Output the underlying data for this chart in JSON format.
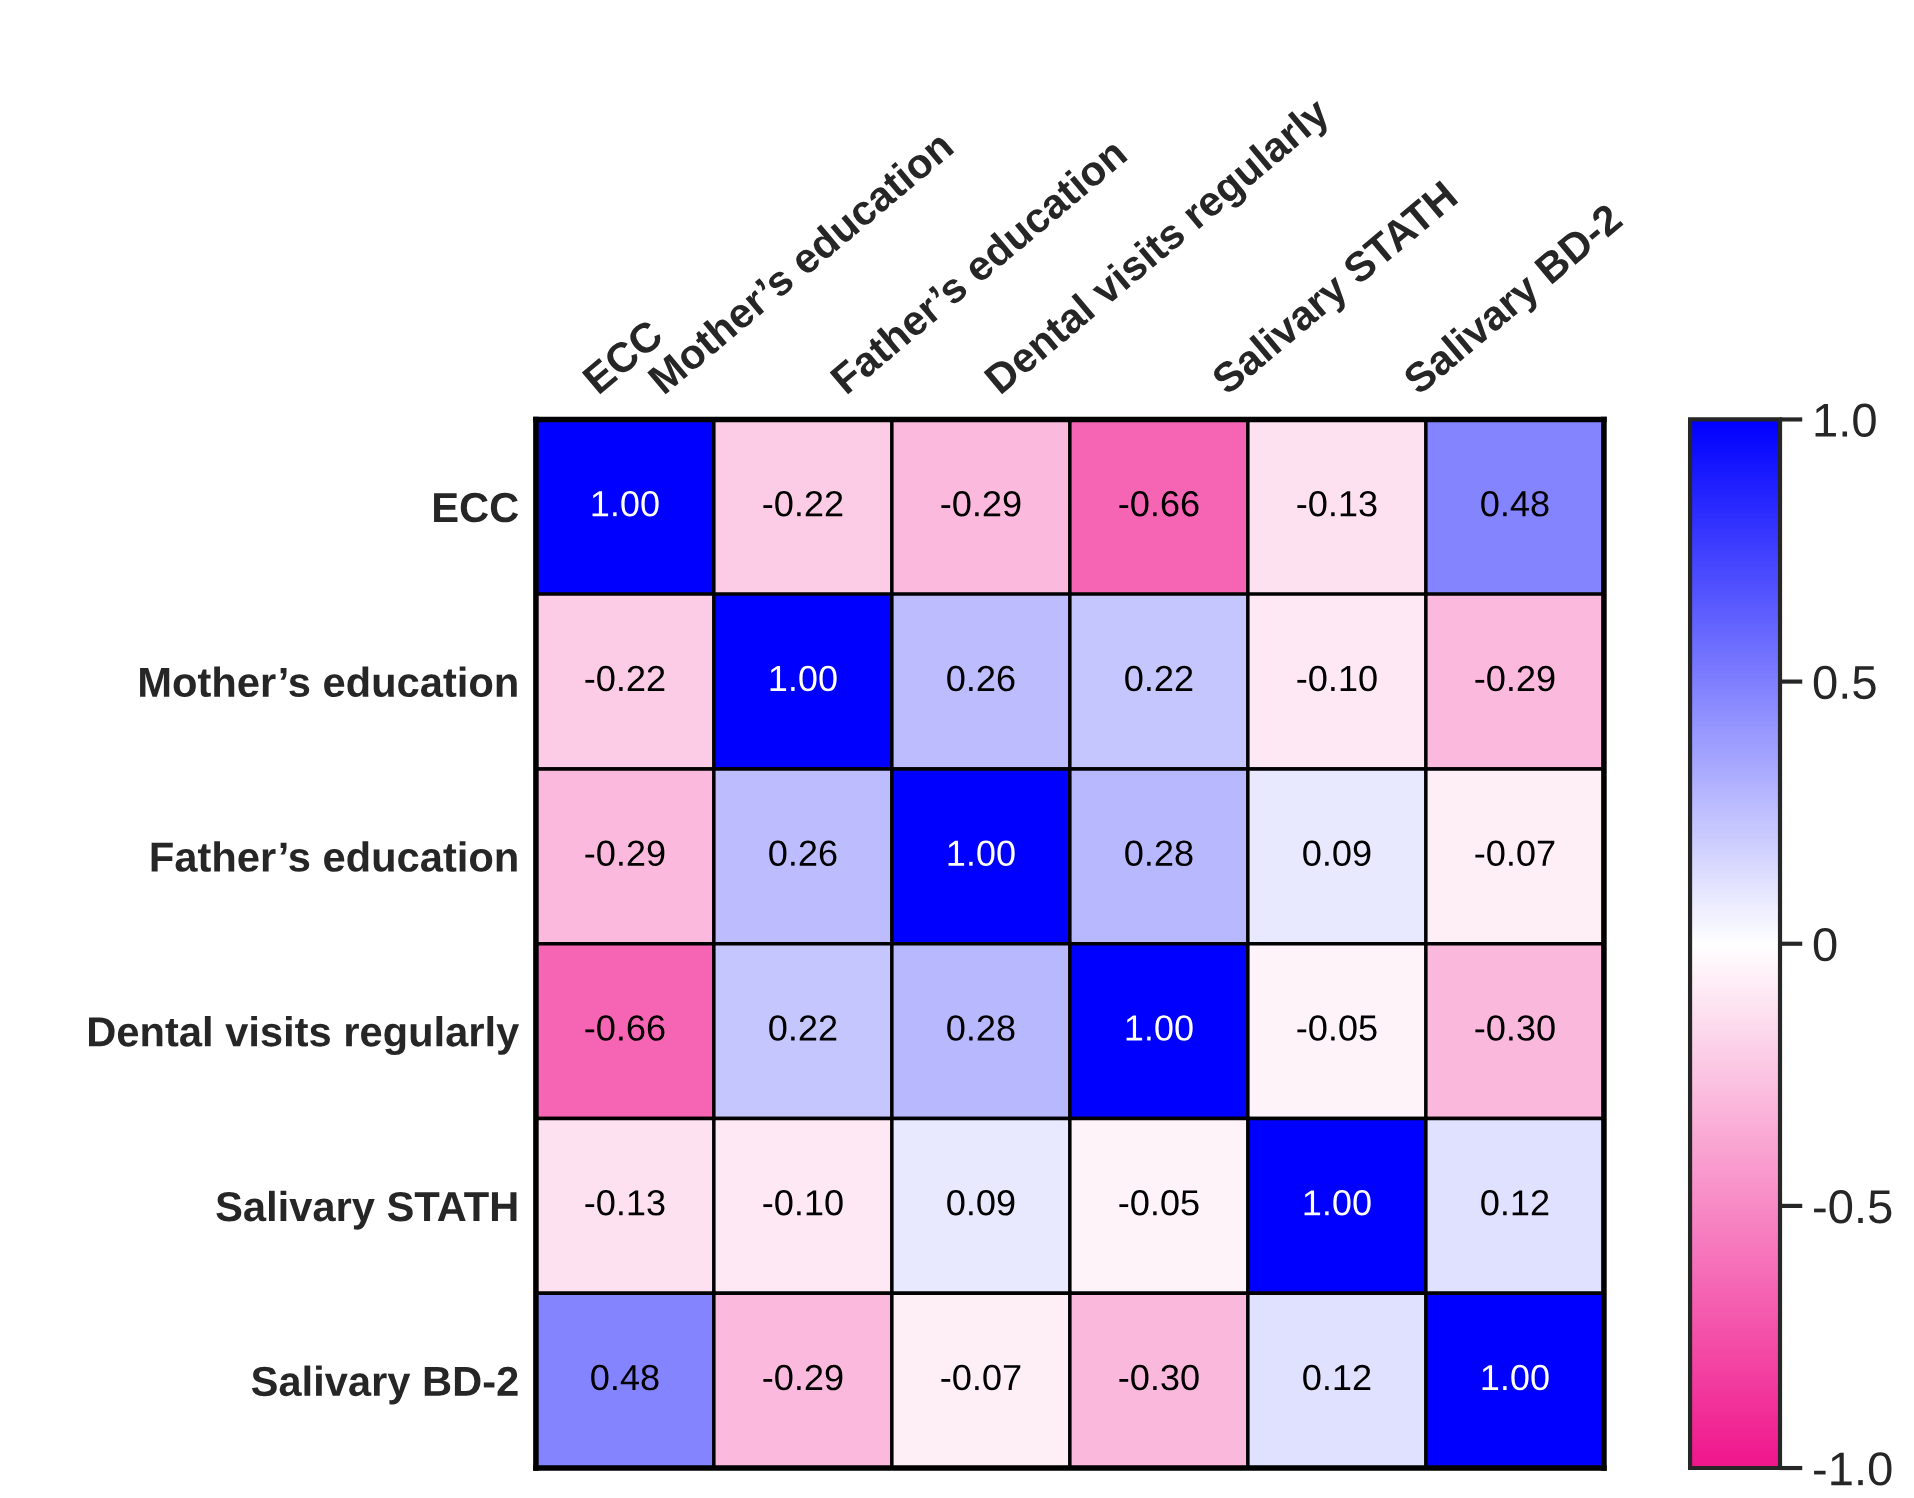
{
  "chart_data": {
    "type": "heatmap",
    "categories": [
      "ECC",
      "Mother’s education",
      "Father’s education",
      "Dental visits regularly",
      "Salivary STATH",
      "Salivary BD-2"
    ],
    "y_categories": [
      "ECC",
      "Mother’s education",
      "Father’s education",
      "Dental visits regularly",
      "Salivary STATH",
      "Salivary BD-2"
    ],
    "cells": [
      [
        1.0,
        -0.22,
        -0.29,
        -0.66,
        -0.13,
        0.48
      ],
      [
        -0.22,
        1.0,
        0.26,
        0.22,
        -0.1,
        -0.29
      ],
      [
        -0.29,
        0.26,
        1.0,
        0.28,
        0.09,
        -0.07
      ],
      [
        -0.66,
        0.22,
        0.28,
        1.0,
        -0.05,
        -0.3
      ],
      [
        -0.13,
        -0.1,
        0.09,
        -0.05,
        1.0,
        0.12
      ],
      [
        0.48,
        -0.29,
        -0.07,
        -0.3,
        0.12,
        1.0
      ]
    ],
    "cell_labels": [
      [
        "1.00",
        "-0.22",
        "-0.29",
        "-0.66",
        "-0.13",
        "0.48"
      ],
      [
        "-0.22",
        "1.00",
        "0.26",
        "0.22",
        "-0.10",
        "-0.29"
      ],
      [
        "-0.29",
        "0.26",
        "1.00",
        "0.28",
        "0.09",
        "-0.07"
      ],
      [
        "-0.66",
        "0.22",
        "0.28",
        "1.00",
        "-0.05",
        "-0.30"
      ],
      [
        "-0.13",
        "-0.10",
        "0.09",
        "-0.05",
        "1.00",
        "0.12"
      ],
      [
        "0.48",
        "-0.29",
        "-0.07",
        "-0.30",
        "0.12",
        "1.00"
      ]
    ],
    "clim": [
      -1,
      1
    ],
    "cticks": [
      {
        "value": 1,
        "label": "1.0"
      },
      0.5,
      0,
      -0.5,
      {
        "value": -1,
        "label": "-1.0"
      }
    ],
    "colors": [
      "#f0168c",
      "#ffffff",
      "#0000ff"
    ]
  }
}
